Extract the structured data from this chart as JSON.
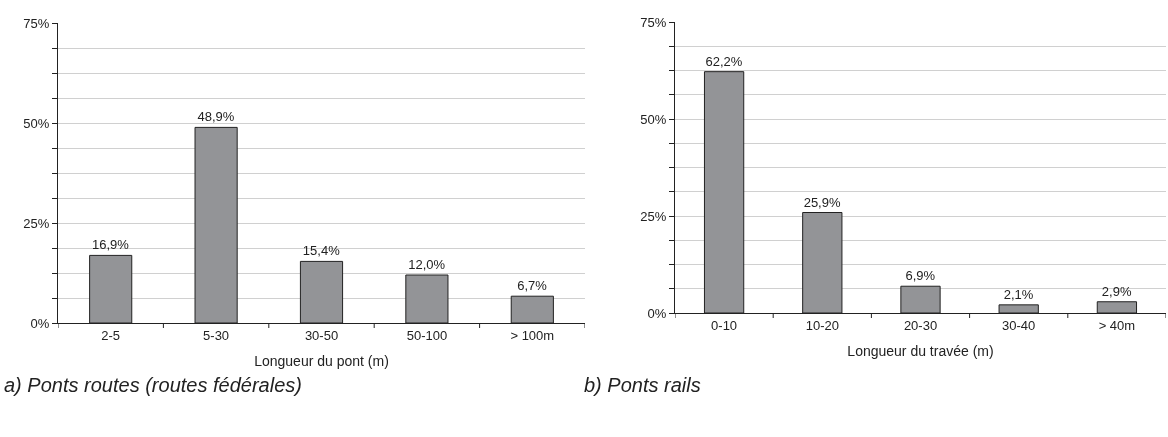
{
  "chart_data": [
    {
      "type": "bar",
      "title": "a) Ponts routes (routes fédérales)",
      "xlabel": "Longueur du pont (m)",
      "categories": [
        "2-5",
        "5-30",
        "30-50",
        "50-100",
        "> 100m"
      ],
      "values": [
        16.9,
        48.9,
        15.4,
        12.0,
        6.7
      ],
      "value_labels": [
        "16,9%",
        "48,9%",
        "15,4%",
        "12,0%",
        "6,7%"
      ],
      "color": "#939497",
      "ylim": [
        0,
        75
      ],
      "yticks": [
        {
          "value": 0,
          "label": "0%"
        },
        {
          "value": 6.25,
          "label": null
        },
        {
          "value": 12.5,
          "label": null
        },
        {
          "value": 18.75,
          "label": null
        },
        {
          "value": 25,
          "label": "25%"
        },
        {
          "value": 31.25,
          "label": null
        },
        {
          "value": 37.5,
          "label": null
        },
        {
          "value": 43.75,
          "label": null
        },
        {
          "value": 50,
          "label": "50%"
        },
        {
          "value": 56.25,
          "label": null
        },
        {
          "value": 62.5,
          "label": null
        },
        {
          "value": 68.75,
          "label": null
        },
        {
          "value": 75,
          "label": "75%"
        }
      ],
      "grid": "y"
    },
    {
      "type": "bar",
      "title": "b) Ponts rails",
      "xlabel": "Longueur du travée (m)",
      "categories": [
        "0-10",
        "10-20",
        "20-30",
        "30-40",
        "> 40m"
      ],
      "values": [
        62.2,
        25.9,
        6.9,
        2.1,
        2.9
      ],
      "value_labels": [
        "62,2%",
        "25,9%",
        "6,9%",
        "2,1%",
        "2,9%"
      ],
      "color": "#939497",
      "ylim": [
        0,
        75
      ],
      "yticks": [
        {
          "value": 0,
          "label": "0%"
        },
        {
          "value": 6.25,
          "label": null
        },
        {
          "value": 12.5,
          "label": null
        },
        {
          "value": 18.75,
          "label": null
        },
        {
          "value": 25,
          "label": "25%"
        },
        {
          "value": 31.25,
          "label": null
        },
        {
          "value": 37.5,
          "label": null
        },
        {
          "value": 43.75,
          "label": null
        },
        {
          "value": 50,
          "label": "50%"
        },
        {
          "value": 56.25,
          "label": null
        },
        {
          "value": 62.5,
          "label": null
        },
        {
          "value": 68.75,
          "label": null
        },
        {
          "value": 75,
          "label": "75%"
        }
      ],
      "grid": "y"
    }
  ]
}
